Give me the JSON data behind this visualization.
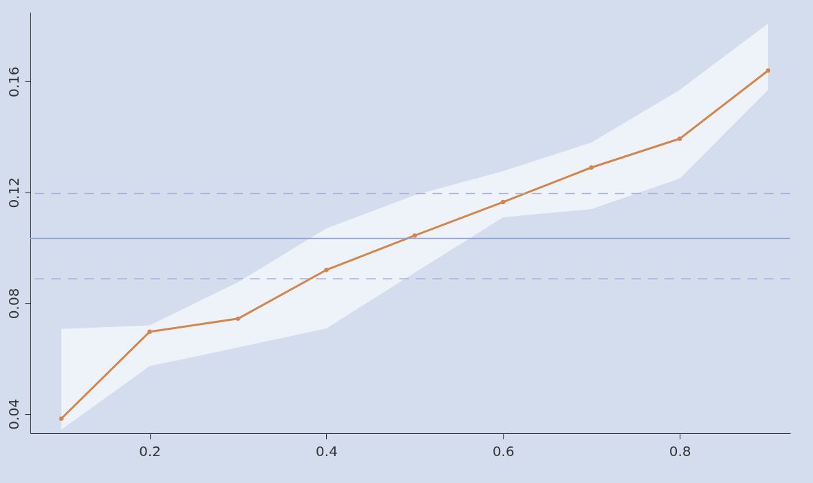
{
  "chart_data": {
    "type": "line",
    "x": [
      0.1,
      0.2,
      0.3,
      0.4,
      0.5,
      0.6,
      0.7,
      0.8,
      0.9
    ],
    "series": [
      {
        "color": "#d4864a",
        "values": [
          0.0383,
          0.0697,
          0.0744,
          0.092,
          0.1044,
          0.1165,
          0.129,
          0.1394,
          0.164
        ],
        "lower": [
          0.0343,
          0.0573,
          0.064,
          0.0709,
          0.091,
          0.111,
          0.114,
          0.125,
          0.157
        ],
        "upper": [
          0.0707,
          0.072,
          0.0876,
          0.107,
          0.119,
          0.1277,
          0.138,
          0.157,
          0.181
        ]
      }
    ],
    "xlim": [
      0.065,
      0.925
    ],
    "xticks": [
      0.2,
      0.4,
      0.6,
      0.8
    ],
    "ylim": [
      0.033,
      0.185
    ],
    "yticks": [
      0.04,
      0.08,
      0.12,
      0.16
    ],
    "ref_lines": [
      {
        "axis": "y",
        "value": 0.1034,
        "color": "#8e9ddf",
        "line_style": "solid"
      },
      {
        "axis": "y",
        "value": 0.1196,
        "color": "#a6b2de",
        "line_style": "dashed"
      },
      {
        "axis": "y",
        "value": 0.0888,
        "color": "#a6b2de",
        "line_style": "dashed"
      }
    ],
    "grid": false,
    "marker": "circle",
    "line_style": "solid"
  }
}
